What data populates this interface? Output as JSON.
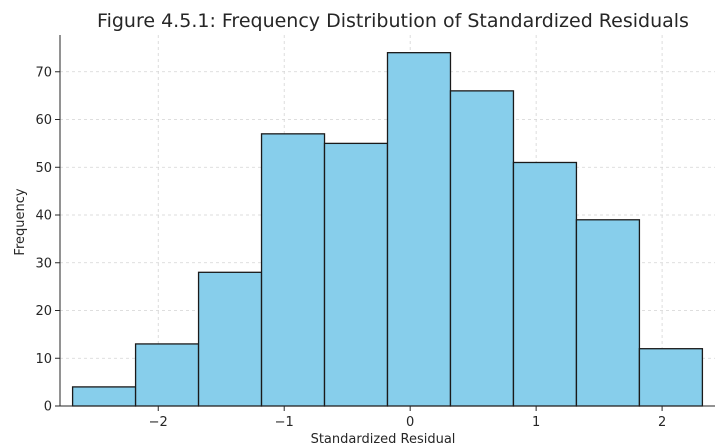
{
  "chart_data": {
    "type": "bar",
    "title": "Figure 4.5.1: Frequency Distribution of Standardized Residuals",
    "xlabel": "Standardized Residual",
    "ylabel": "Frequency",
    "bins": [
      {
        "start": -2.68,
        "end": -2.18,
        "count": 4
      },
      {
        "start": -2.18,
        "end": -1.68,
        "count": 13
      },
      {
        "start": -1.68,
        "end": -1.18,
        "count": 28
      },
      {
        "start": -1.18,
        "end": -0.68,
        "count": 57
      },
      {
        "start": -0.68,
        "end": -0.18,
        "count": 55
      },
      {
        "start": -0.18,
        "end": 0.32,
        "count": 74
      },
      {
        "start": 0.32,
        "end": 0.82,
        "count": 66
      },
      {
        "start": 0.82,
        "end": 1.32,
        "count": 51
      },
      {
        "start": 1.32,
        "end": 1.82,
        "count": 39
      },
      {
        "start": 1.82,
        "end": 2.32,
        "count": 12
      }
    ],
    "xlim": [
      -2.78,
      2.42
    ],
    "ylim": [
      0,
      77.7
    ],
    "xticks": [
      -2,
      -1,
      0,
      1,
      2
    ],
    "xtick_labels": [
      "−2",
      "−1",
      "0",
      "1",
      "2"
    ],
    "yticks": [
      0,
      10,
      20,
      30,
      40,
      50,
      60,
      70
    ],
    "grid": true,
    "bar_color": "#87ceeb",
    "edge_color": "#1a1a1a"
  }
}
